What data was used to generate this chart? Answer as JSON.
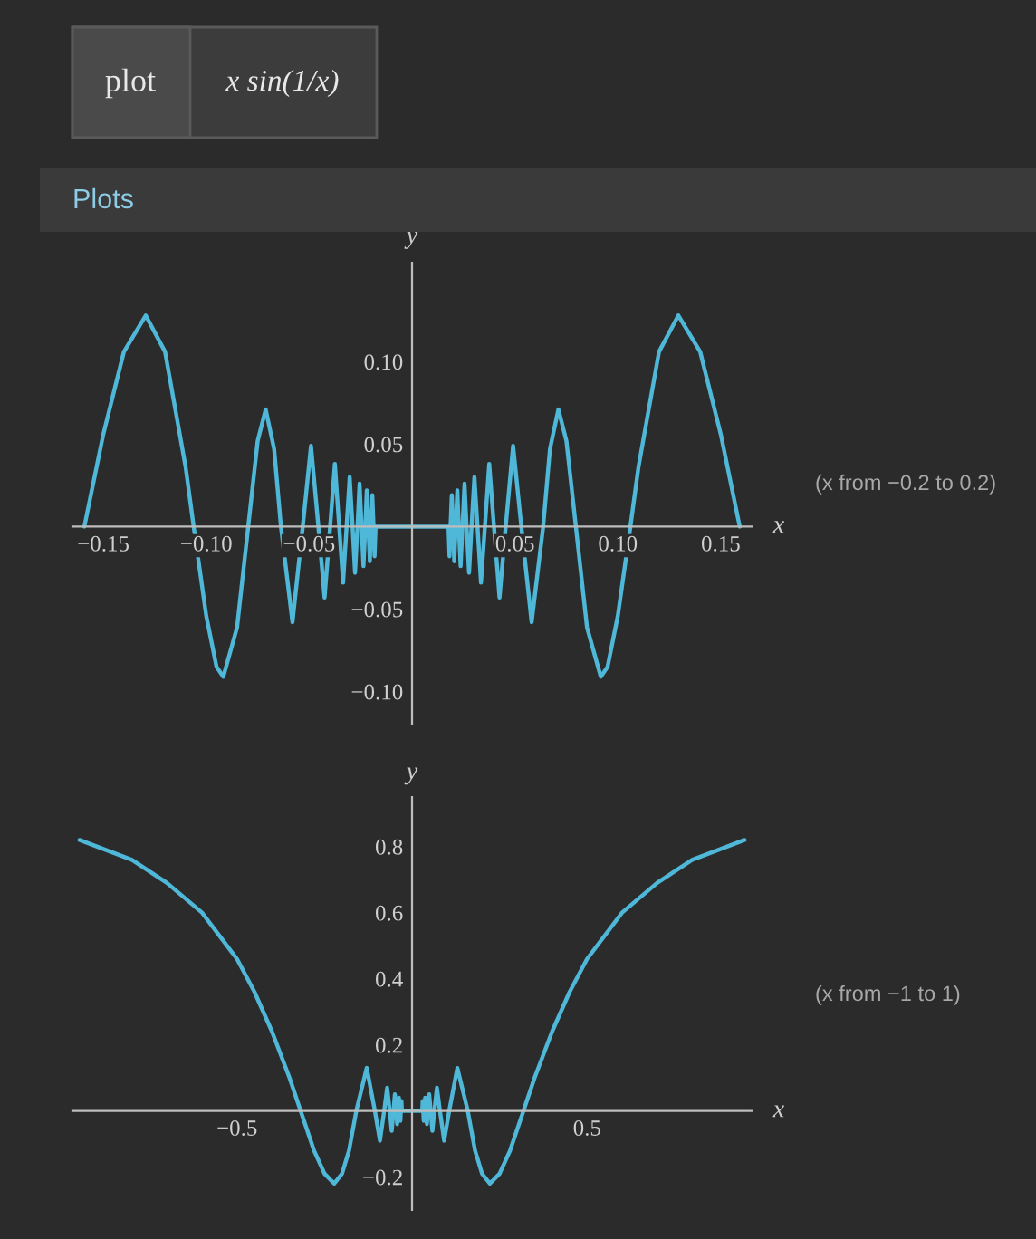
{
  "chart_data": [
    {
      "type": "line",
      "title": "plot",
      "subtitle": "x sin(1/x)",
      "xlabel": "x",
      "ylabel": "y",
      "annotations": [
        "Plots",
        "(x from −0.2 to 0.2)"
      ],
      "xlim": [
        -0.165,
        0.165
      ],
      "ylim": [
        -0.12,
        0.16
      ],
      "xticks": [
        {
          "value": -0.15,
          "label": "−0.15"
        },
        {
          "value": -0.1,
          "label": "−0.10"
        },
        {
          "value": -0.05,
          "label": "−0.05"
        },
        {
          "value": 0.05,
          "label": "0.05"
        },
        {
          "value": 0.1,
          "label": "0.10"
        },
        {
          "value": 0.15,
          "label": "0.15"
        }
      ],
      "yticks": [
        {
          "value": -0.1,
          "label": "−0.10"
        },
        {
          "value": -0.05,
          "label": "−0.05"
        },
        {
          "value": 0.05,
          "label": "0.05"
        },
        {
          "value": 0.1,
          "label": "0.10"
        }
      ],
      "grid": false,
      "legend": false,
      "series": [
        {
          "color": "#4fb8d8",
          "x": [
            -0.1592,
            -0.15,
            -0.14,
            -0.1294,
            -0.12,
            -0.11,
            -0.1061,
            -0.1,
            -0.095,
            -0.0917,
            -0.085,
            -0.0796,
            -0.075,
            -0.0711,
            -0.067,
            -0.0637,
            -0.0581,
            -0.0531,
            -0.0491,
            -0.0455,
            -0.0425,
            -0.0398,
            -0.0375,
            -0.0354,
            -0.0335,
            -0.0318,
            -0.0303,
            -0.0289,
            -0.0277,
            -0.0265,
            -0.0255,
            -0.0245,
            -0.0236,
            -0.0227,
            -0.022,
            -0.0212,
            -0.0205,
            -0.0199,
            -0.0193,
            -0.0187,
            -0.0182,
            -0.0177,
            0,
            0.0177,
            0.0182,
            0.0187,
            0.0193,
            0.0199,
            0.0205,
            0.0212,
            0.022,
            0.0227,
            0.0236,
            0.0245,
            0.0255,
            0.0265,
            0.0277,
            0.0289,
            0.0303,
            0.0318,
            0.0335,
            0.0354,
            0.0375,
            0.0398,
            0.0425,
            0.0455,
            0.0491,
            0.0531,
            0.0581,
            0.0637,
            0.067,
            0.0711,
            0.075,
            0.0796,
            0.085,
            0.0917,
            0.095,
            0.1,
            0.1061,
            0.11,
            0.12,
            0.1294,
            0.14,
            0.15,
            0.1592
          ],
          "values": [
            0,
            0.056,
            0.106,
            0.128,
            0.106,
            0.036,
            0,
            -0.054,
            -0.085,
            -0.091,
            -0.061,
            0,
            0.052,
            0.071,
            0.047,
            0,
            -0.058,
            0,
            0.049,
            0,
            -0.043,
            0,
            0.038,
            0,
            -0.034,
            0,
            0.03,
            0,
            -0.028,
            0,
            0.026,
            0,
            -0.024,
            0,
            0.022,
            0,
            -0.021,
            0,
            0.019,
            0,
            -0.018,
            0,
            0,
            0,
            -0.018,
            0,
            0.019,
            0,
            -0.021,
            0,
            0.022,
            0,
            -0.024,
            0,
            0.026,
            0,
            -0.028,
            0,
            0.03,
            0,
            -0.034,
            0,
            0.038,
            0,
            -0.043,
            0,
            0.049,
            0,
            -0.058,
            0,
            0.047,
            0.071,
            0.052,
            0,
            -0.061,
            -0.091,
            -0.085,
            -0.054,
            0,
            0.036,
            0.106,
            0.128,
            0.106,
            0.056,
            0
          ]
        }
      ]
    },
    {
      "type": "line",
      "xlabel": "x",
      "ylabel": "y",
      "annotations": [
        "(x from −1 to 1)"
      ],
      "xlim": [
        -0.97,
        0.97
      ],
      "ylim": [
        -0.3,
        0.95
      ],
      "xticks": [
        {
          "value": -0.5,
          "label": "−0.5"
        },
        0.5
      ],
      "yticks": [
        {
          "value": -0.2,
          "label": "−0.2"
        },
        0.2,
        0.4,
        0.6,
        0.8
      ],
      "grid": false,
      "legend": false,
      "series": [
        {
          "color": "#4fb8d8",
          "x": [
            -0.95,
            -0.8,
            -0.7,
            -0.6,
            -0.5,
            -0.45,
            -0.4,
            -0.35,
            -0.3183,
            -0.28,
            -0.25,
            -0.2225,
            -0.2,
            -0.18,
            -0.1592,
            -0.1294,
            -0.1061,
            -0.0917,
            -0.0796,
            -0.0711,
            -0.0637,
            -0.0581,
            -0.0531,
            -0.0491,
            -0.0455,
            -0.0425,
            -0.0398,
            -0.0375,
            -0.0354,
            -0.0335,
            -0.0318,
            -0.0303,
            -0.0289,
            0,
            0.0289,
            0.0303,
            0.0318,
            0.0335,
            0.0354,
            0.0375,
            0.0398,
            0.0425,
            0.0455,
            0.0491,
            0.0531,
            0.0581,
            0.0637,
            0.0711,
            0.0796,
            0.0917,
            0.1061,
            0.1294,
            0.1592,
            0.18,
            0.2,
            0.2225,
            0.25,
            0.28,
            0.3183,
            0.35,
            0.4,
            0.45,
            0.5,
            0.6,
            0.7,
            0.8,
            0.95
          ],
          "values": [
            0.82,
            0.76,
            0.69,
            0.6,
            0.46,
            0.36,
            0.24,
            0.1,
            0,
            -0.12,
            -0.19,
            -0.22,
            -0.19,
            -0.12,
            0,
            0.13,
            0,
            -0.09,
            0,
            0.07,
            0,
            -0.06,
            0,
            0.05,
            0,
            -0.04,
            0,
            0.04,
            0,
            -0.03,
            0,
            0.03,
            0,
            0,
            0,
            0.03,
            0,
            -0.03,
            0,
            0.04,
            0,
            -0.04,
            0,
            0.05,
            0,
            -0.06,
            0,
            0.07,
            0,
            -0.09,
            0,
            0.13,
            0,
            -0.12,
            -0.19,
            -0.22,
            -0.19,
            -0.12,
            0,
            0.1,
            0.24,
            0.36,
            0.46,
            0.6,
            0.69,
            0.76,
            0.82
          ]
        }
      ]
    }
  ]
}
